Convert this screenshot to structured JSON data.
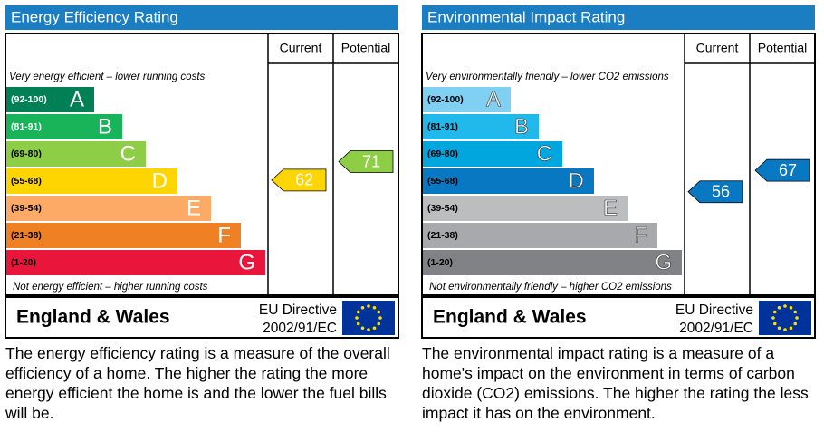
{
  "panels": [
    {
      "title": "Energy Efficiency Rating",
      "columns": [
        "Current",
        "Potential"
      ],
      "top_note": "Very energy efficient – lower running costs",
      "bands": [
        {
          "range": "(92-100)",
          "letter": "A",
          "color": "#008054"
        },
        {
          "range": "(81-91)",
          "letter": "B",
          "color": "#19b459"
        },
        {
          "range": "(69-80)",
          "letter": "C",
          "color": "#8dce46"
        },
        {
          "range": "(55-68)",
          "letter": "D",
          "color": "#ffd500"
        },
        {
          "range": "(39-54)",
          "letter": "E",
          "color": "#fcaa65"
        },
        {
          "range": "(21-38)",
          "letter": "F",
          "color": "#ef8023"
        },
        {
          "range": "(1-20)",
          "letter": "G",
          "color": "#e9153b"
        }
      ],
      "bottom_note": "Not energy efficient – higher running costs",
      "current": 62,
      "potential": 71,
      "region": "England & Wales",
      "directive": [
        "EU Directive",
        "2002/91/EC"
      ],
      "description": "The energy efficiency rating is a measure of the overall efficiency of a home.  The higher the rating the more energy efficient the home is and the lower the fuel bills will be."
    },
    {
      "title": "Environmental Impact Rating",
      "columns": [
        "Current",
        "Potential"
      ],
      "top_note": "Very environmentally friendly – lower CO2 emissions",
      "bands": [
        {
          "range": "(92-100)",
          "letter": "A",
          "color": "#7fd0f3"
        },
        {
          "range": "(81-91)",
          "letter": "B",
          "color": "#21b8ec"
        },
        {
          "range": "(69-80)",
          "letter": "C",
          "color": "#00a6dd"
        },
        {
          "range": "(55-68)",
          "letter": "D",
          "color": "#0878c2"
        },
        {
          "range": "(39-54)",
          "letter": "E",
          "color": "#bbbdbf"
        },
        {
          "range": "(21-38)",
          "letter": "F",
          "color": "#a7a9ac"
        },
        {
          "range": "(1-20)",
          "letter": "G",
          "color": "#808285"
        }
      ],
      "bottom_note": "Not environmentally friendly – higher CO2 emissions",
      "current": 56,
      "potential": 67,
      "region": "England & Wales",
      "directive": [
        "EU Directive",
        "2002/91/EC"
      ],
      "description": "The environmental impact rating is a measure of a home's impact on the environment in terms of carbon dioxide (CO2) emissions.  The higher the rating the less impact it has on the environment."
    }
  ]
}
